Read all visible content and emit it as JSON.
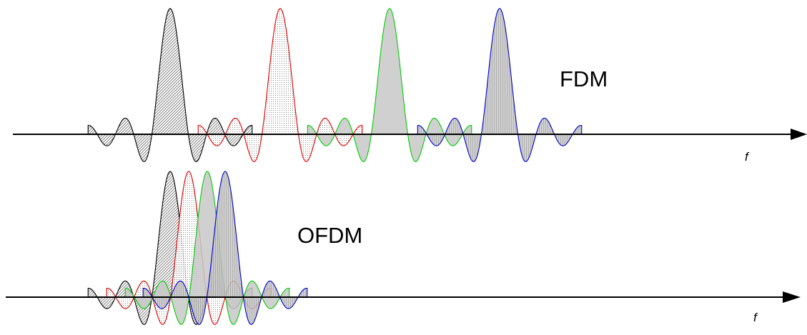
{
  "fdm": {
    "label": "FDM",
    "axis_label": "f"
  },
  "ofdm": {
    "label": "OFDM",
    "axis_label": "f"
  },
  "colors": {
    "axis": "#000000",
    "carrier_1": "#000000",
    "carrier_2": "#e00000",
    "carrier_3": "#00cc00",
    "carrier_4": "#0000cc",
    "fill_solid": "#c8c8c8"
  },
  "carriers": [
    {
      "id": "carrier-1",
      "color_key": "carrier_1",
      "fill": "hatch"
    },
    {
      "id": "carrier-2",
      "color_key": "carrier_2",
      "fill": "dots"
    },
    {
      "id": "carrier-3",
      "color_key": "carrier_3",
      "fill": "solid"
    },
    {
      "id": "carrier-4",
      "color_key": "carrier_4",
      "fill": "vlines"
    }
  ]
}
